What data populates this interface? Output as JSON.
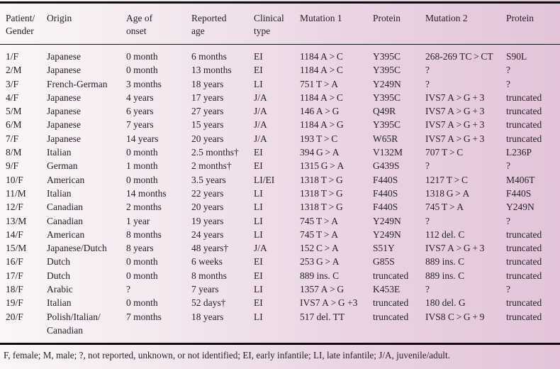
{
  "table": {
    "columns": [
      "Patient/\nGender",
      "Origin",
      "Age of\nonset",
      "Reported\nage",
      "Clinical\ntype",
      "Mutation 1",
      "Protein",
      "Mutation 2",
      "Protein"
    ],
    "rows": [
      [
        "1/F",
        "Japanese",
        "0 month",
        "6 months",
        "EI",
        "1184 A > C",
        "Y395C",
        "268-269 TC > CT",
        "S90L"
      ],
      [
        "2/M",
        "Japanese",
        "0 month",
        "13 months",
        "EI",
        "1184 A > C",
        "Y395C",
        "?",
        "?"
      ],
      [
        "3/F",
        "French-German",
        "3 months",
        "18 years",
        "LI",
        "751 T > A",
        "Y249N",
        "?",
        "?"
      ],
      [
        "4/F",
        "Japanese",
        "4 years",
        "17 years",
        "J/A",
        "1184 A > C",
        "Y395C",
        "IVS7 A > G + 3",
        "truncated"
      ],
      [
        "5/M",
        "Japanese",
        "6 years",
        "27 years",
        "J/A",
        "146 A > G",
        "Q49R",
        "IVS7 A > G + 3",
        "truncated"
      ],
      [
        "6/M",
        "Japanese",
        "7 years",
        "15 years",
        "J/A",
        "1184 A > G",
        "Y395C",
        "IVS7 A > G + 3",
        "truncated"
      ],
      [
        "7/F",
        "Japanese",
        "14 years",
        "20 years",
        "J/A",
        "193 T > C",
        "W65R",
        "IVS7 A > G + 3",
        "truncated"
      ],
      [
        "8/M",
        "Italian",
        "0 month",
        "2.5 months†",
        "EI",
        "394 G > A",
        "V132M",
        "707 T > C",
        "L236P"
      ],
      [
        "9/F",
        "German",
        "1 month",
        "2 months†",
        "EI",
        "1315 G > A",
        "G439S",
        "?",
        "?"
      ],
      [
        "10/F",
        "American",
        "0 month",
        "3.5 years",
        "LI/EI",
        "1318 T > G",
        "F440S",
        "1217 T > C",
        "M406T"
      ],
      [
        "11/M",
        "Italian",
        "14 months",
        "22 years",
        "LI",
        "1318 T > G",
        "F440S",
        "1318 G > A",
        "F440S"
      ],
      [
        "12/F",
        "Canadian",
        "2 months",
        "20 years",
        "LI",
        "1318 T > G",
        "F440S",
        "745 T > A",
        "Y249N"
      ],
      [
        "13/M",
        "Canadian",
        "1 year",
        "19 years",
        "LI",
        "745 T > A",
        "Y249N",
        "?",
        "?"
      ],
      [
        "14/F",
        "American",
        "8 months",
        "24 years",
        "LI",
        "745 T > A",
        "Y249N",
        "112 del. C",
        "truncated"
      ],
      [
        "15/M",
        "Japanese/Dutch",
        "8 years",
        "48 years†",
        "J/A",
        "152 C > A",
        "S51Y",
        "IVS7 A > G + 3",
        "truncated"
      ],
      [
        "16/F",
        "Dutch",
        "0 month",
        "6 weeks",
        "EI",
        "253 G > A",
        "G85S",
        "889 ins. C",
        "truncated"
      ],
      [
        "17/F",
        "Dutch",
        "0 month",
        "8 months",
        "EI",
        "889 ins. C",
        "truncated",
        "889 ins. C",
        "truncated"
      ],
      [
        "18/F",
        "Arabic",
        "?",
        "7 years",
        "LI",
        "1357 A > G",
        "K453E",
        "?",
        "?"
      ],
      [
        "19/F",
        "Italian",
        "0 month",
        "52 days†",
        "EI",
        "IVS7 A > G +3",
        "truncated",
        "180 del. G",
        "truncated"
      ],
      [
        "20/F",
        "Polish/Italian/\nCanadian",
        "7 months",
        "18 years",
        "LI",
        "517 del. TT",
        "truncated",
        "IVS8 C > G + 9",
        "truncated"
      ]
    ],
    "footnote": "F, female; M, male; ?, not reported, unknown, or not identified; EI, early infantile; LI, late infantile; J/A, juvenile/adult."
  },
  "colors": {
    "background_left": "#faf6f8",
    "background_right": "#e3c4da",
    "rule": "#0d0d0d",
    "text": "#272127"
  }
}
